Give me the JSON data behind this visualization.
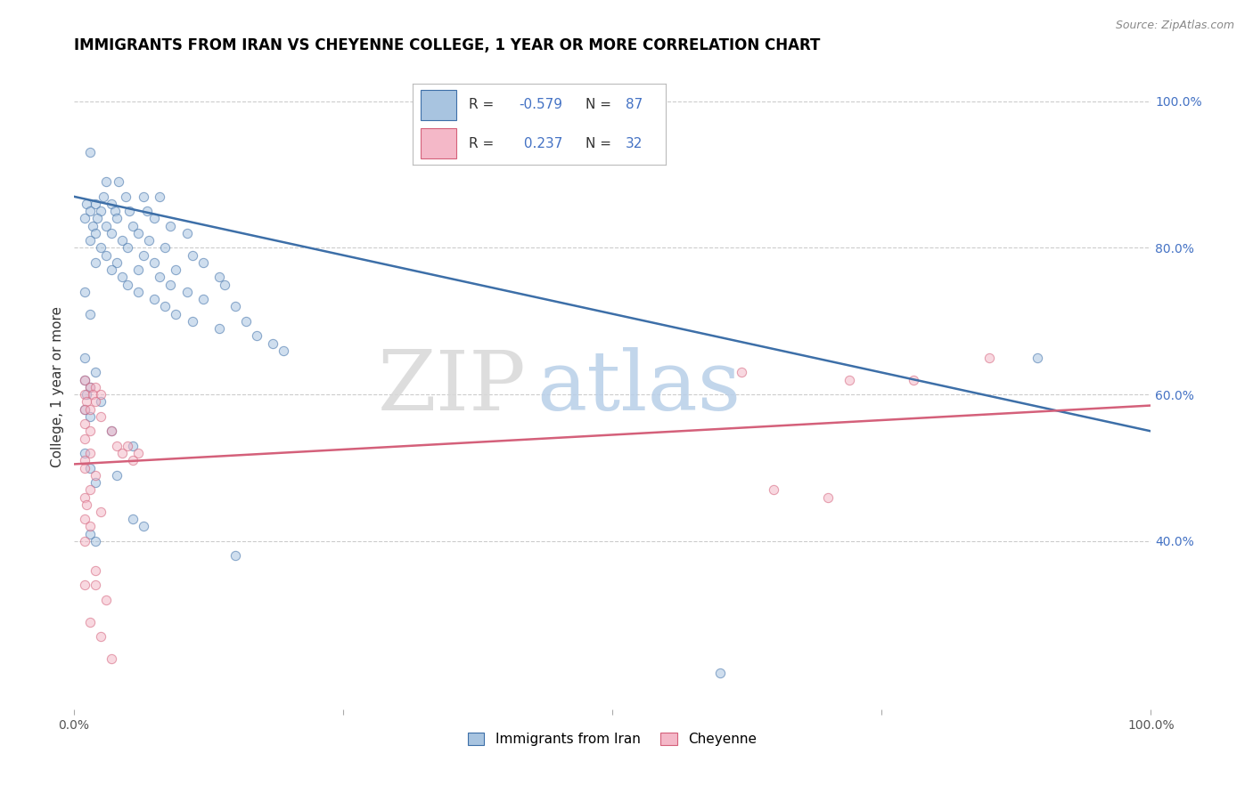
{
  "title": "IMMIGRANTS FROM IRAN VS CHEYENNE COLLEGE, 1 YEAR OR MORE CORRELATION CHART",
  "source": "Source: ZipAtlas.com",
  "ylabel": "College, 1 year or more",
  "legend_label1": "Immigrants from Iran",
  "legend_label2": "Cheyenne",
  "blue_color": "#a8c4e0",
  "blue_line_color": "#3d6fa8",
  "pink_color": "#f4b8c8",
  "pink_line_color": "#d4607a",
  "blue_scatter": [
    [
      1.5,
      93
    ],
    [
      3.0,
      89
    ],
    [
      4.2,
      89
    ],
    [
      2.8,
      87
    ],
    [
      4.8,
      87
    ],
    [
      6.5,
      87
    ],
    [
      8.0,
      87
    ],
    [
      1.2,
      86
    ],
    [
      2.0,
      86
    ],
    [
      3.5,
      86
    ],
    [
      1.5,
      85
    ],
    [
      2.5,
      85
    ],
    [
      3.8,
      85
    ],
    [
      5.2,
      85
    ],
    [
      6.8,
      85
    ],
    [
      1.0,
      84
    ],
    [
      2.2,
      84
    ],
    [
      4.0,
      84
    ],
    [
      7.5,
      84
    ],
    [
      1.8,
      83
    ],
    [
      3.0,
      83
    ],
    [
      5.5,
      83
    ],
    [
      9.0,
      83
    ],
    [
      2.0,
      82
    ],
    [
      3.5,
      82
    ],
    [
      6.0,
      82
    ],
    [
      10.5,
      82
    ],
    [
      1.5,
      81
    ],
    [
      4.5,
      81
    ],
    [
      7.0,
      81
    ],
    [
      2.5,
      80
    ],
    [
      5.0,
      80
    ],
    [
      8.5,
      80
    ],
    [
      3.0,
      79
    ],
    [
      6.5,
      79
    ],
    [
      11.0,
      79
    ],
    [
      2.0,
      78
    ],
    [
      4.0,
      78
    ],
    [
      7.5,
      78
    ],
    [
      12.0,
      78
    ],
    [
      3.5,
      77
    ],
    [
      6.0,
      77
    ],
    [
      9.5,
      77
    ],
    [
      4.5,
      76
    ],
    [
      8.0,
      76
    ],
    [
      13.5,
      76
    ],
    [
      5.0,
      75
    ],
    [
      9.0,
      75
    ],
    [
      14.0,
      75
    ],
    [
      1.0,
      74
    ],
    [
      6.0,
      74
    ],
    [
      10.5,
      74
    ],
    [
      7.5,
      73
    ],
    [
      12.0,
      73
    ],
    [
      8.5,
      72
    ],
    [
      15.0,
      72
    ],
    [
      1.5,
      71
    ],
    [
      9.5,
      71
    ],
    [
      16.0,
      70
    ],
    [
      11.0,
      70
    ],
    [
      13.5,
      69
    ],
    [
      17.0,
      68
    ],
    [
      18.5,
      67
    ],
    [
      19.5,
      66
    ],
    [
      1.0,
      65
    ],
    [
      2.0,
      63
    ],
    [
      1.0,
      62
    ],
    [
      1.5,
      61
    ],
    [
      1.2,
      60
    ],
    [
      2.5,
      59
    ],
    [
      1.0,
      58
    ],
    [
      1.5,
      57
    ],
    [
      3.5,
      55
    ],
    [
      5.5,
      53
    ],
    [
      1.0,
      52
    ],
    [
      1.5,
      50
    ],
    [
      4.0,
      49
    ],
    [
      2.0,
      48
    ],
    [
      5.5,
      43
    ],
    [
      6.5,
      42
    ],
    [
      1.5,
      41
    ],
    [
      2.0,
      40
    ],
    [
      15.0,
      38
    ],
    [
      60.0,
      22
    ],
    [
      89.5,
      65
    ]
  ],
  "pink_scatter": [
    [
      1.0,
      62
    ],
    [
      1.5,
      61
    ],
    [
      2.0,
      61
    ],
    [
      1.0,
      60
    ],
    [
      1.8,
      60
    ],
    [
      2.5,
      60
    ],
    [
      1.2,
      59
    ],
    [
      2.0,
      59
    ],
    [
      1.0,
      58
    ],
    [
      1.5,
      58
    ],
    [
      2.5,
      57
    ],
    [
      1.0,
      56
    ],
    [
      1.5,
      55
    ],
    [
      3.5,
      55
    ],
    [
      1.0,
      54
    ],
    [
      4.0,
      53
    ],
    [
      5.0,
      53
    ],
    [
      1.5,
      52
    ],
    [
      4.5,
      52
    ],
    [
      6.0,
      52
    ],
    [
      1.0,
      51
    ],
    [
      5.5,
      51
    ],
    [
      1.0,
      50
    ],
    [
      2.0,
      49
    ],
    [
      1.5,
      47
    ],
    [
      1.0,
      46
    ],
    [
      1.2,
      45
    ],
    [
      2.5,
      44
    ],
    [
      1.0,
      43
    ],
    [
      1.5,
      42
    ],
    [
      1.0,
      40
    ],
    [
      2.0,
      36
    ],
    [
      3.0,
      32
    ],
    [
      1.5,
      29
    ],
    [
      2.5,
      27
    ],
    [
      3.5,
      24
    ],
    [
      62.0,
      63
    ],
    [
      72.0,
      62
    ],
    [
      78.0,
      62
    ],
    [
      85.0,
      65
    ],
    [
      65.0,
      47
    ],
    [
      70.0,
      46
    ],
    [
      2.0,
      34
    ],
    [
      1.0,
      34
    ]
  ],
  "blue_line_x": [
    0.0,
    100.0
  ],
  "blue_line_y": [
    87.0,
    55.0
  ],
  "pink_line_x": [
    0.0,
    100.0
  ],
  "pink_line_y": [
    50.5,
    58.5
  ],
  "xlim": [
    0.0,
    100.0
  ],
  "ylim": [
    17.0,
    105.0
  ],
  "yticks": [
    40.0,
    60.0,
    80.0,
    100.0
  ],
  "ytick_labels": [
    "40.0%",
    "60.0%",
    "80.0%",
    "100.0%"
  ],
  "xticks": [
    0.0,
    25.0,
    50.0,
    75.0,
    100.0
  ],
  "xtick_labels": [
    "0.0%",
    "",
    "",
    "",
    "100.0%"
  ],
  "background_color": "#ffffff",
  "grid_color": "#cccccc",
  "title_fontsize": 12,
  "axis_label_fontsize": 11,
  "tick_fontsize": 10,
  "scatter_size": 55,
  "scatter_alpha": 0.55
}
